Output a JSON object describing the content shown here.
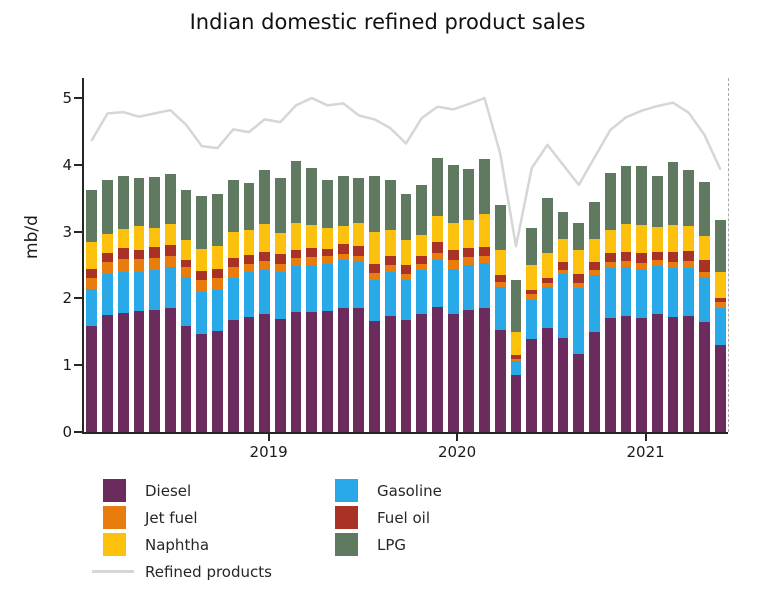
{
  "chart_data": {
    "type": "bar",
    "subtype": "stacked-bar-with-line",
    "title": "Indian domestic refined product sales",
    "ylabel": "mb/d",
    "ylim": [
      0,
      5.3
    ],
    "yticks": [
      0,
      1,
      2,
      3,
      4,
      5
    ],
    "grid": false,
    "legend_position": "bottom",
    "categories": [
      "Feb 2018",
      "Mar 2018",
      "Apr 2018",
      "May 2018",
      "Jun 2018",
      "Jul 2018",
      "Aug 2018",
      "Sep 2018",
      "Oct 2018",
      "Nov 2018",
      "Dec 2018",
      "Jan 2019",
      "Feb 2019",
      "Mar 2019",
      "Apr 2019",
      "May 2019",
      "Jun 2019",
      "Jul 2019",
      "Aug 2019",
      "Sep 2019",
      "Oct 2019",
      "Nov 2019",
      "Dec 2019",
      "Jan 2020",
      "Feb 2020",
      "Mar 2020",
      "Apr 2020",
      "May 2020",
      "Jun 2020",
      "Jul 2020",
      "Aug 2020",
      "Sep 2020",
      "Oct 2020",
      "Nov 2020",
      "Dec 2020",
      "Jan 2021",
      "Feb 2021",
      "Mar 2021",
      "Apr 2021",
      "May 2021",
      "Jun 2021"
    ],
    "x_year_ticks": [
      {
        "label": "2019",
        "index": 11
      },
      {
        "label": "2020",
        "index": 23
      },
      {
        "label": "2021",
        "index": 35
      }
    ],
    "series": [
      {
        "name": "Diesel",
        "color": "#6b2b5c",
        "values": [
          1.59,
          1.75,
          1.78,
          1.81,
          1.83,
          1.85,
          1.58,
          1.47,
          1.51,
          1.68,
          1.72,
          1.76,
          1.69,
          1.8,
          1.8,
          1.81,
          1.86,
          1.85,
          1.66,
          1.73,
          1.67,
          1.76,
          1.87,
          1.76,
          1.82,
          1.85,
          1.53,
          0.85,
          1.4,
          1.56,
          1.41,
          1.17,
          1.49,
          1.7,
          1.74,
          1.71,
          1.76,
          1.72,
          1.73,
          1.65,
          1.31
        ]
      },
      {
        "name": "Gasoline",
        "color": "#29a9e8",
        "values": [
          0.55,
          0.62,
          0.62,
          0.59,
          0.6,
          0.62,
          0.74,
          0.63,
          0.61,
          0.62,
          0.68,
          0.66,
          0.71,
          0.68,
          0.7,
          0.71,
          0.72,
          0.71,
          0.61,
          0.67,
          0.6,
          0.66,
          0.7,
          0.68,
          0.68,
          0.68,
          0.64,
          0.22,
          0.58,
          0.61,
          0.95,
          0.99,
          0.86,
          0.75,
          0.73,
          0.73,
          0.72,
          0.73,
          0.73,
          0.67,
          0.55
        ]
      },
      {
        "name": "Jet fuel",
        "color": "#e87d0e",
        "values": [
          0.16,
          0.17,
          0.19,
          0.19,
          0.17,
          0.16,
          0.15,
          0.17,
          0.18,
          0.17,
          0.12,
          0.14,
          0.12,
          0.13,
          0.12,
          0.11,
          0.09,
          0.08,
          0.11,
          0.1,
          0.09,
          0.1,
          0.11,
          0.14,
          0.12,
          0.11,
          0.08,
          0.03,
          0.08,
          0.06,
          0.07,
          0.07,
          0.08,
          0.09,
          0.09,
          0.09,
          0.09,
          0.09,
          0.1,
          0.08,
          0.08
        ]
      },
      {
        "name": "Fuel oil",
        "color": "#a93226",
        "values": [
          0.14,
          0.14,
          0.16,
          0.14,
          0.17,
          0.17,
          0.11,
          0.14,
          0.14,
          0.13,
          0.13,
          0.14,
          0.14,
          0.12,
          0.13,
          0.11,
          0.14,
          0.14,
          0.14,
          0.13,
          0.14,
          0.12,
          0.16,
          0.14,
          0.13,
          0.13,
          0.1,
          0.05,
          0.07,
          0.07,
          0.11,
          0.13,
          0.12,
          0.14,
          0.14,
          0.15,
          0.13,
          0.15,
          0.15,
          0.17,
          0.07
        ]
      },
      {
        "name": "Naphtha",
        "color": "#fcc10d",
        "values": [
          0.4,
          0.28,
          0.29,
          0.35,
          0.29,
          0.32,
          0.29,
          0.33,
          0.34,
          0.4,
          0.38,
          0.42,
          0.32,
          0.4,
          0.35,
          0.32,
          0.28,
          0.35,
          0.48,
          0.39,
          0.38,
          0.31,
          0.39,
          0.41,
          0.42,
          0.49,
          0.38,
          0.35,
          0.37,
          0.38,
          0.35,
          0.36,
          0.34,
          0.35,
          0.42,
          0.42,
          0.37,
          0.41,
          0.38,
          0.37,
          0.39
        ]
      },
      {
        "name": "LPG",
        "color": "#5f7a60",
        "values": [
          0.78,
          0.82,
          0.79,
          0.72,
          0.76,
          0.75,
          0.75,
          0.79,
          0.78,
          0.77,
          0.7,
          0.8,
          0.83,
          0.93,
          0.85,
          0.71,
          0.75,
          0.68,
          0.83,
          0.76,
          0.69,
          0.75,
          0.88,
          0.87,
          0.77,
          0.83,
          0.67,
          0.77,
          0.55,
          0.83,
          0.4,
          0.41,
          0.55,
          0.85,
          0.87,
          0.88,
          0.77,
          0.95,
          0.84,
          0.8,
          0.78
        ]
      }
    ],
    "line_series": {
      "name": "Refined products",
      "color": "#d6d6d6",
      "values": [
        4.37,
        4.77,
        4.79,
        4.72,
        4.77,
        4.82,
        4.6,
        4.28,
        4.25,
        4.53,
        4.49,
        4.68,
        4.64,
        4.89,
        5.0,
        4.89,
        4.92,
        4.74,
        4.68,
        4.55,
        4.32,
        4.7,
        4.87,
        4.83,
        4.91,
        5.0,
        4.17,
        2.78,
        3.95,
        4.3,
        4.0,
        3.7,
        4.11,
        4.52,
        4.71,
        4.81,
        4.88,
        4.93,
        4.78,
        4.45,
        3.94
      ]
    },
    "annotations": {
      "right_boundary_dashed_line": true
    }
  },
  "legend": {
    "column1_indices": [
      0,
      2,
      4
    ],
    "column2_indices": [
      1,
      3,
      5
    ],
    "line_label": "Refined products"
  },
  "style": {
    "axis_color": "#262626",
    "text_color": "#1a1a1a",
    "dashed_line_color": "#a8a8a8",
    "background": "#ffffff"
  }
}
